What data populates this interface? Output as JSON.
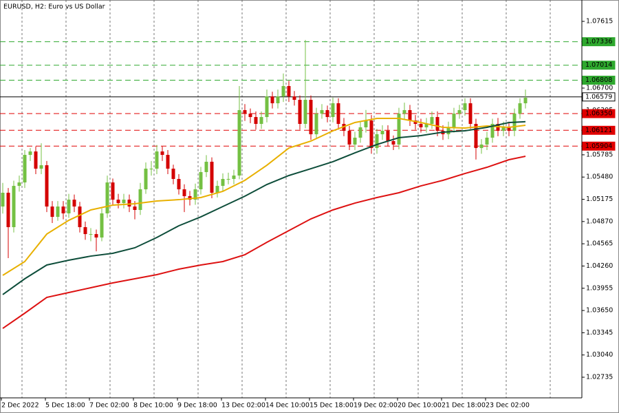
{
  "chart_data": {
    "type": "candlestick",
    "title": "EURUSD, H2:  Euro vs US Dollar",
    "categories": [
      "2 Dec 2022",
      null,
      null,
      null,
      null,
      null,
      null,
      null,
      "5 Dec 18:00",
      null,
      null,
      null,
      null,
      null,
      null,
      null,
      "7 Dec 02:00",
      null,
      null,
      null,
      null,
      null,
      null,
      null,
      "8 Dec 10:00",
      null,
      null,
      null,
      null,
      null,
      null,
      null,
      "9 Dec 18:00",
      null,
      null,
      null,
      null,
      null,
      null,
      null,
      "13 Dec 02:00",
      null,
      null,
      null,
      null,
      null,
      null,
      null,
      "14 Dec 10:00",
      null,
      null,
      null,
      null,
      null,
      null,
      null,
      "15 Dec 18:00",
      null,
      null,
      null,
      null,
      null,
      null,
      null,
      "19 Dec 02:00",
      null,
      null,
      null,
      null,
      null,
      null,
      null,
      "20 Dec 10:00",
      null,
      null,
      null,
      null,
      null,
      null,
      null,
      "21 Dec 18:00",
      null,
      null,
      null,
      null,
      null,
      null,
      null,
      "23 Dec 02:00",
      null,
      null,
      null,
      null,
      null,
      null,
      null
    ],
    "open": [
      1.05076,
      1.05265,
      1.04793,
      1.05359,
      1.05406,
      1.05784,
      1.05831,
      1.05595,
      1.05642,
      1.05076,
      1.04934,
      1.05076,
      1.04982,
      1.0517,
      1.05076,
      1.04793,
      1.04698,
      1.04698,
      1.04651,
      1.04982,
      1.05406,
      1.0517,
      1.05123,
      1.0517,
      1.05076,
      1.05029,
      1.05312,
      1.05595,
      1.05595,
      1.05831,
      1.05784,
      1.05595,
      1.05454,
      1.05312,
      1.05218,
      1.0517,
      1.05312,
      1.05548,
      1.0569,
      1.05265,
      1.05359,
      1.05454,
      1.05454,
      1.05501,
      1.06398,
      1.0635,
      1.06303,
      1.06209,
      1.06303,
      1.06586,
      1.06492,
      1.06586,
      1.06728,
      1.06586,
      1.06539,
      1.06209,
      1.06539,
      1.06067,
      1.0635,
      1.06398,
      1.06303,
      1.06492,
      1.06209,
      1.06114,
      1.05926,
      1.0602,
      1.06162,
      1.06256,
      1.05878,
      1.06067,
      1.06114,
      1.05973,
      1.05926,
      1.0635,
      1.06398,
      1.06256,
      1.06209,
      1.06162,
      1.06209,
      1.06303,
      1.06114,
      1.06067,
      1.06162,
      1.0635,
      1.06398,
      1.06492,
      1.06209,
      1.05878,
      1.05926,
      1.0602,
      1.06209,
      1.06114,
      1.06162,
      1.06114,
      1.0635,
      1.06492
    ],
    "close": [
      1.05265,
      1.04793,
      1.05359,
      1.05406,
      1.05784,
      1.05831,
      1.05595,
      1.05642,
      1.05076,
      1.04934,
      1.05076,
      1.04982,
      1.0517,
      1.05076,
      1.04793,
      1.04698,
      1.04698,
      1.04651,
      1.04982,
      1.05406,
      1.0517,
      1.05123,
      1.0517,
      1.05076,
      1.05029,
      1.05312,
      1.05595,
      1.05595,
      1.05831,
      1.05784,
      1.05595,
      1.05454,
      1.05312,
      1.05218,
      1.0517,
      1.05312,
      1.05548,
      1.0569,
      1.05265,
      1.05359,
      1.05454,
      1.05454,
      1.05501,
      1.06398,
      1.0635,
      1.06303,
      1.06209,
      1.06303,
      1.06586,
      1.06492,
      1.06586,
      1.06728,
      1.06586,
      1.06539,
      1.06209,
      1.06539,
      1.06067,
      1.0635,
      1.06398,
      1.06303,
      1.06492,
      1.06209,
      1.06114,
      1.05926,
      1.0602,
      1.06162,
      1.06256,
      1.05878,
      1.06067,
      1.06114,
      1.05973,
      1.05926,
      1.0635,
      1.06398,
      1.06256,
      1.06209,
      1.06162,
      1.06209,
      1.06303,
      1.06114,
      1.06067,
      1.06162,
      1.0635,
      1.06398,
      1.06492,
      1.06209,
      1.05878,
      1.05926,
      1.0602,
      1.06209,
      1.06114,
      1.06162,
      1.06114,
      1.0635,
      1.06492,
      1.06568
    ],
    "high": [
      1.054,
      1.0533,
      1.0543,
      1.055,
      1.0585,
      1.05878,
      1.059,
      1.05944,
      1.057,
      1.0515,
      1.0515,
      1.0515,
      1.0525,
      1.0524,
      1.0514,
      1.0487,
      1.0478,
      1.0476,
      1.0505,
      1.055,
      1.0546,
      1.0525,
      1.0525,
      1.0524,
      1.0515,
      1.054,
      1.0568,
      1.057,
      1.0592,
      1.059,
      1.0585,
      1.0565,
      1.0552,
      1.0538,
      1.0529,
      1.0539,
      1.0562,
      1.0578,
      1.0575,
      1.0543,
      1.0553,
      1.0554,
      1.0558,
      1.06728,
      1.0648,
      1.0642,
      1.0638,
      1.0638,
      1.0668,
      1.0665,
      1.0668,
      1.069,
      1.068,
      1.0666,
      1.066,
      1.0736,
      1.066,
      1.0643,
      1.0648,
      1.0646,
      1.0657,
      1.0656,
      1.0629,
      1.0618,
      1.061,
      1.0624,
      1.064,
      1.0633,
      1.0614,
      1.0619,
      1.0619,
      1.0605,
      1.0643,
      1.065,
      1.0647,
      1.0633,
      1.0628,
      1.0629,
      1.0638,
      1.0638,
      1.0619,
      1.0624,
      1.0643,
      1.0647,
      1.0656,
      1.0656,
      1.0628,
      1.06,
      1.061,
      1.0628,
      1.0629,
      1.0624,
      1.0624,
      1.0642,
      1.0656,
      1.0668
    ],
    "low": [
      1.0498,
      1.04368,
      1.0472,
      1.0528,
      1.0533,
      1.057,
      1.0552,
      1.0552,
      1.05,
      1.0485,
      1.0488,
      1.049,
      1.0492,
      1.05,
      1.0472,
      1.0462,
      1.046,
      1.04462,
      1.046,
      1.0492,
      1.051,
      1.0505,
      1.0505,
      1.05,
      1.049,
      1.0496,
      1.0525,
      1.055,
      1.0552,
      1.057,
      1.0552,
      1.0538,
      1.0524,
      1.05,
      1.0509,
      1.051,
      1.0524,
      1.0548,
      1.0519,
      1.052,
      1.0529,
      1.0538,
      1.0538,
      1.0545,
      1.0625,
      1.0622,
      1.0613,
      1.0614,
      1.0623,
      1.0642,
      1.0642,
      1.0651,
      1.0651,
      1.0646,
      1.0613,
      1.0615,
      1.0599,
      1.06,
      1.0628,
      1.0623,
      1.0623,
      1.0613,
      1.0604,
      1.0585,
      1.0585,
      1.0595,
      1.0609,
      1.058,
      1.058,
      1.0599,
      1.059,
      1.0585,
      1.0586,
      1.0628,
      1.0618,
      1.0613,
      1.0609,
      1.0609,
      1.0614,
      1.0604,
      1.0599,
      1.06,
      1.0609,
      1.0628,
      1.0632,
      1.0614,
      1.0572,
      1.058,
      1.0585,
      1.0595,
      1.0604,
      1.0604,
      1.0604,
      1.0604,
      1.0628,
      1.0642
    ],
    "up_color": "#74c043",
    "down_color": "#d40000",
    "ylim": [
      1.02452,
      1.07908
    ],
    "yticks": [
      1.07615,
      {
        "value": 1.067,
        "label": "1.06700"
      },
      1.06395,
      1.05785,
      {
        "value": 1.0548,
        "label": "1.05480"
      },
      1.05175,
      {
        "value": 1.0487,
        "label": "1.04870"
      },
      1.04565,
      {
        "value": 1.0426,
        "label": "1.04260"
      },
      1.03955,
      {
        "value": 1.0365,
        "label": "1.03650"
      },
      1.03345,
      {
        "value": 1.0304,
        "label": "1.03040"
      },
      1.02735
    ],
    "lines": [
      {
        "color": "#e8b000",
        "x": [
          0,
          4,
          8,
          12,
          16,
          20,
          24,
          28,
          32,
          36,
          40,
          44,
          48,
          52,
          56,
          60,
          64,
          68,
          72,
          76,
          80,
          84,
          88,
          92,
          95
        ],
        "values": [
          1.04132,
          1.04321,
          1.04698,
          1.04887,
          1.05029,
          1.05095,
          1.05114,
          1.05152,
          1.0517,
          1.05199,
          1.05284,
          1.05435,
          1.05642,
          1.05878,
          1.05973,
          1.06114,
          1.06228,
          1.06284,
          1.06284,
          1.06228,
          1.06162,
          1.06152,
          1.0618,
          1.06162,
          1.0619
        ]
      },
      {
        "color": "#0d4d3a",
        "x": [
          0,
          4,
          8,
          12,
          16,
          20,
          24,
          28,
          32,
          36,
          40,
          44,
          48,
          52,
          56,
          60,
          64,
          68,
          72,
          76,
          80,
          84,
          88,
          92,
          95
        ],
        "values": [
          1.03868,
          1.04085,
          1.04274,
          1.0434,
          1.04396,
          1.04434,
          1.0451,
          1.04651,
          1.04812,
          1.04934,
          1.05076,
          1.05218,
          1.05378,
          1.05501,
          1.05595,
          1.0569,
          1.05812,
          1.05926,
          1.0602,
          1.06048,
          1.06096,
          1.06114,
          1.06162,
          1.06228,
          1.06239
        ]
      },
      {
        "color": "#dd1111",
        "x": [
          0,
          4,
          8,
          12,
          16,
          20,
          24,
          28,
          32,
          36,
          40,
          44,
          48,
          52,
          56,
          60,
          64,
          68,
          72,
          76,
          80,
          84,
          88,
          92,
          95
        ],
        "values": [
          1.03405,
          1.03613,
          1.0383,
          1.03896,
          1.03962,
          1.04028,
          1.04085,
          1.04142,
          1.04217,
          1.04274,
          1.04321,
          1.04415,
          1.04585,
          1.04746,
          1.04906,
          1.05029,
          1.05123,
          1.05199,
          1.05265,
          1.05359,
          1.05435,
          1.05529,
          1.05614,
          1.05718,
          1.05765
        ]
      }
    ],
    "levels": [
      {
        "value": 1.07336,
        "label": "1.07336",
        "color": "#2ea82e",
        "style": "dashed"
      },
      {
        "value": 1.07014,
        "label": "1.07014",
        "color": "#2ea82e",
        "style": "dashed"
      },
      {
        "value": 1.06808,
        "label": "1.06808",
        "color": "#2ea82e",
        "style": "dashed"
      },
      {
        "value": 1.06579,
        "label": "1.06579",
        "color": "#000000",
        "style": "solid"
      },
      {
        "value": 1.0635,
        "label": "1.06350",
        "color": "#e00000",
        "style": "dashed"
      },
      {
        "value": 1.06121,
        "label": "1.06121",
        "color": "#e00000",
        "style": "dashed"
      },
      {
        "value": 1.05904,
        "label": "1.05904",
        "color": "#e00000",
        "style": "dashed"
      }
    ]
  }
}
